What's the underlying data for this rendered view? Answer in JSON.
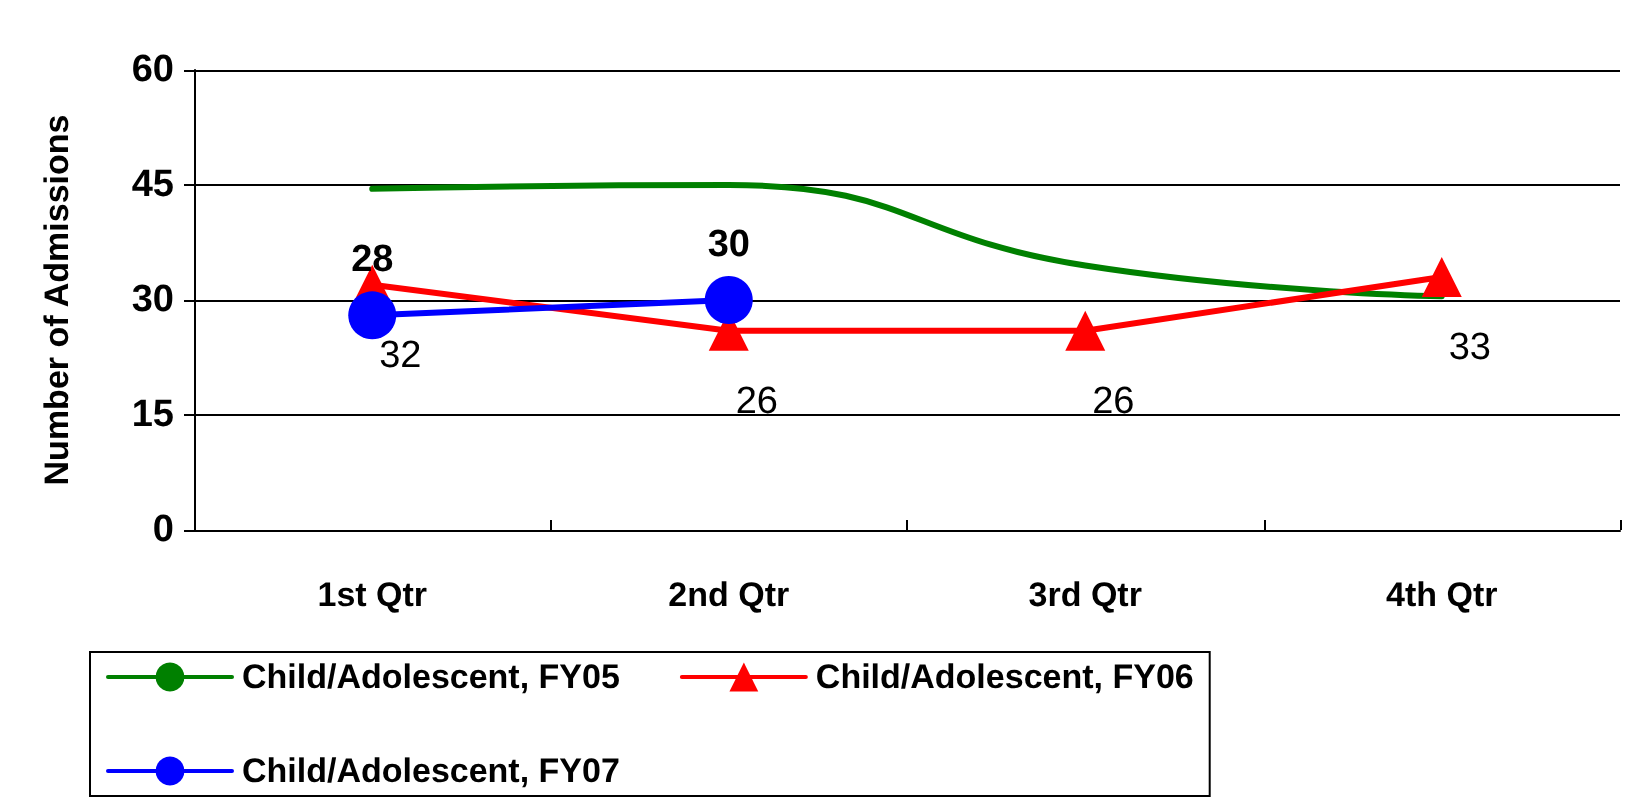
{
  "chart_data": {
    "type": "line",
    "ylabel": "Number of Admissions",
    "categories": [
      "1st Qtr",
      "2nd Qtr",
      "3rd Qtr",
      "4th Qtr"
    ],
    "series": [
      {
        "name": "Child/Adolescent, FY05",
        "color": "#008000",
        "values": [
          44.5,
          45,
          34.5,
          30.5
        ],
        "marker": "none"
      },
      {
        "name": "Child/Adolescent, FY06",
        "color": "#ff0000",
        "values": [
          32,
          26,
          26,
          33
        ],
        "marker": "triangle",
        "value_labels": [
          "32",
          "26",
          "26",
          "33"
        ]
      },
      {
        "name": "Child/Adolescent, FY07",
        "color": "#0000ff",
        "values": [
          28,
          30,
          null,
          null
        ],
        "marker": "circle",
        "value_labels": [
          "28",
          "30",
          null,
          null
        ]
      }
    ],
    "ylim": [
      0,
      60
    ],
    "yticks": [
      0,
      15,
      30,
      45,
      60
    ],
    "grid": "y",
    "legend": "bottom"
  }
}
